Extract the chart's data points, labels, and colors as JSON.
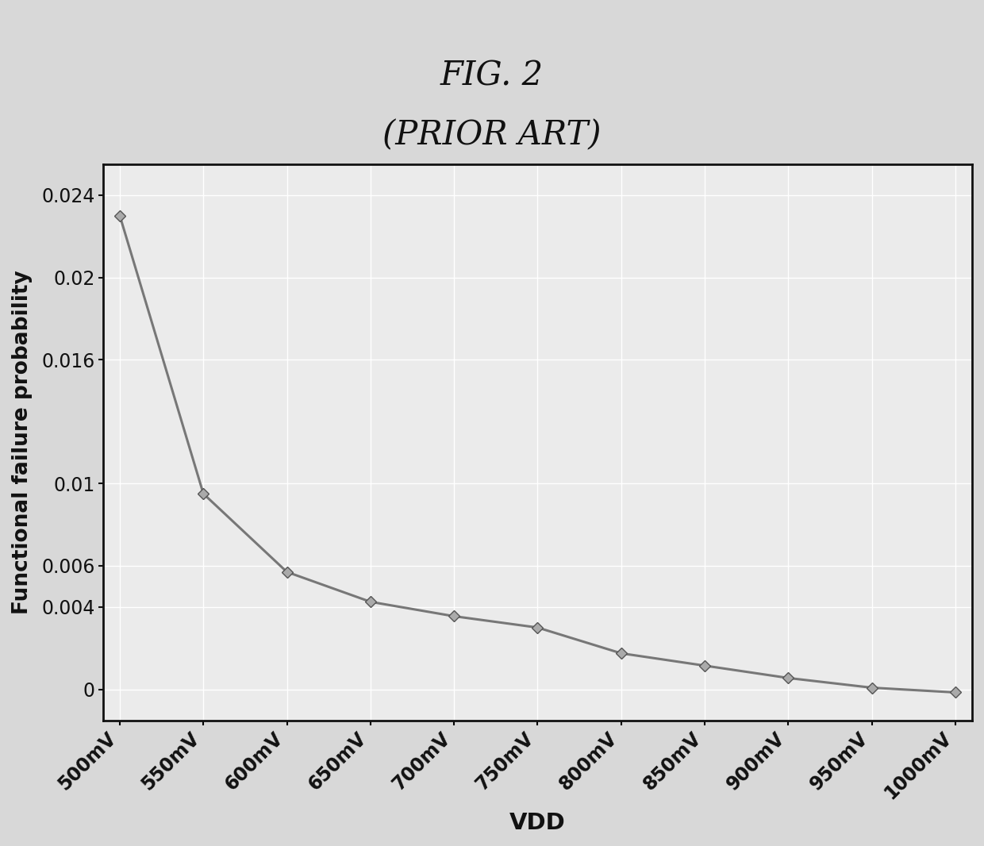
{
  "title_line1": "FIG. 2",
  "title_line2": "(PRIOR ART)",
  "xlabel": "VDD",
  "ylabel": "Functional failure probability",
  "x_labels": [
    "500mV",
    "550mV",
    "600mV",
    "650mV",
    "700mV",
    "750mV",
    "800mV",
    "850mV",
    "900mV",
    "950mV",
    "1000mV"
  ],
  "x_values": [
    500,
    550,
    600,
    650,
    700,
    750,
    800,
    850,
    900,
    950,
    1000
  ],
  "y_values": [
    0.023,
    0.0095,
    0.0057,
    0.00425,
    0.00355,
    0.003,
    0.00175,
    0.00115,
    0.00055,
    8e-05,
    -0.00015
  ],
  "ylim_min": -0.0015,
  "ylim_max": 0.0255,
  "yticks": [
    0,
    0.004,
    0.006,
    0.01,
    0.016,
    0.02,
    0.024
  ],
  "line_color": "#777777",
  "marker_color": "#aaaaaa",
  "marker_edge_color": "#555555",
  "bg_color": "#d8d8d8",
  "plot_bg_color": "#ebebeb",
  "grid_color": "#ffffff",
  "title_fontsize": 30,
  "label_fontsize": 19,
  "tick_fontsize": 17
}
